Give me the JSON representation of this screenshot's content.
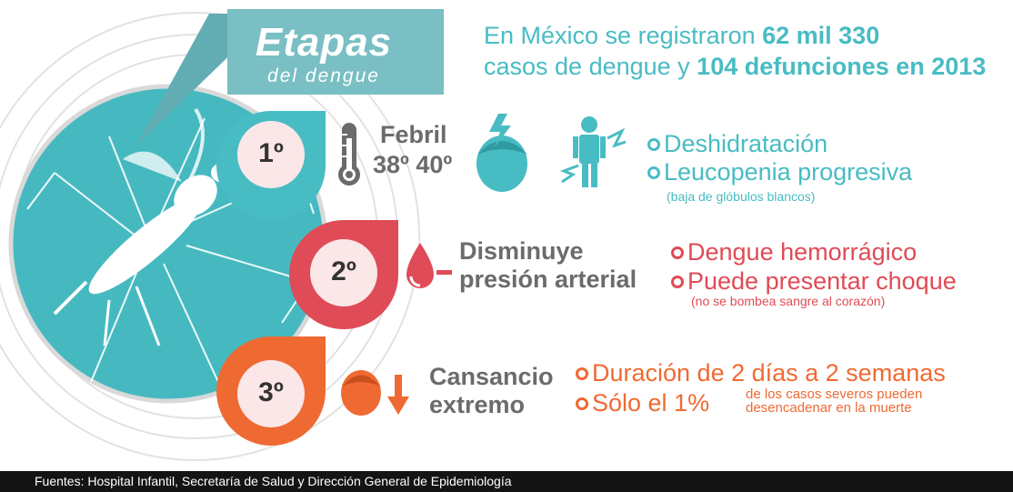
{
  "title": {
    "main": "Etapas",
    "sub": "del dengue"
  },
  "headline": {
    "line1_pre": "En México se registraron ",
    "line1_bold": "62 mil 330",
    "line2_pre": "casos de dengue y ",
    "line2_bold": "104 defunciones en 2013"
  },
  "stages": [
    {
      "number": "1º",
      "label_lines": [
        "Febril",
        "38º 40º"
      ],
      "icons": [
        "thermometer-icon",
        "fevered-head-icon",
        "lightning-person-icon"
      ],
      "items": [
        "Deshidratación",
        "Leucopenia progresiva"
      ],
      "note": "(baja de glóbulos blancos)",
      "color": "#48bcc3"
    },
    {
      "number": "2º",
      "label_lines": [
        "Disminuye",
        "presión arterial"
      ],
      "icons": [
        "blood-drop-minus-icon"
      ],
      "items": [
        "Dengue hemorrágico",
        "Puede presentar choque"
      ],
      "note": "(no se bombea sangre al corazón)",
      "color": "#df4b56"
    },
    {
      "number": "3º",
      "label_lines": [
        "Cansancio",
        "extremo"
      ],
      "icons": [
        "head-down-arrow-icon"
      ],
      "items": [
        "Duración de 2 días a 2 semanas",
        "Sólo el 1%"
      ],
      "note_lines": [
        "de los casos severos pueden",
        "desencadenar en la muerte"
      ],
      "color": "#ef6a32"
    }
  ],
  "footer": "Fuentes: Hospital Infantil, Secretaría de Salud y Dirección General de Epidemiología",
  "colors": {
    "teal": "#48bcc3",
    "red": "#df4b56",
    "orange": "#ef6a32",
    "gray": "#6b6b6b",
    "dark_teal_banner": "#79bfc3"
  }
}
